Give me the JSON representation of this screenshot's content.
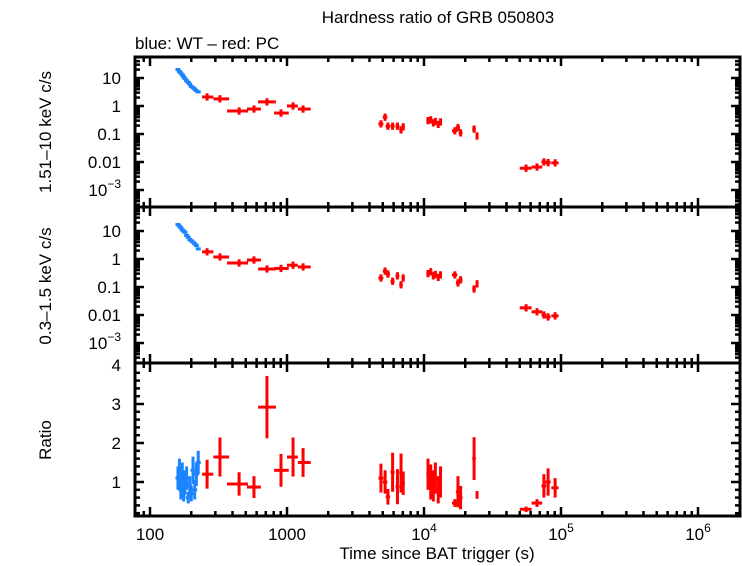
{
  "chart_data": {
    "type": "scatter",
    "title": "Hardness ratio of GRB 050803",
    "subtitle": "blue: WT – red: PC",
    "xlabel": "Time since BAT trigger (s)",
    "x_scale": "log",
    "xlim": [
      78,
      1900000
    ],
    "xtick_labels": [
      {
        "value": 100,
        "label": "100"
      },
      {
        "value": 1000,
        "label": "1000"
      },
      {
        "value": 10000,
        "label": "10",
        "sup": "4"
      },
      {
        "value": 100000,
        "label": "10",
        "sup": "5"
      },
      {
        "value": 1000000,
        "label": "10",
        "sup": "6"
      }
    ],
    "colors": {
      "WT": "#1a85ff",
      "PC": "#ff0000"
    },
    "panels": [
      {
        "key": "hard",
        "ylabel": "1.51–10 keV c/s",
        "y_scale": "log",
        "ylim": [
          0.00025,
          52
        ],
        "ytick_labels": [
          {
            "value": 10,
            "label": "10"
          },
          {
            "value": 1,
            "label": "1"
          },
          {
            "value": 0.1,
            "label": "0.1"
          },
          {
            "value": 0.01,
            "label": "0.01"
          },
          {
            "value": 0.001,
            "label": "10",
            "sup": "−3"
          }
        ]
      },
      {
        "key": "soft",
        "ylabel": "0.3–1.5 keV c/s",
        "y_scale": "log",
        "ylim": [
          0.00021,
          72
        ],
        "ytick_labels": [
          {
            "value": 10,
            "label": "10"
          },
          {
            "value": 1,
            "label": "1"
          },
          {
            "value": 0.1,
            "label": "0.1"
          },
          {
            "value": 0.01,
            "label": "0.01"
          },
          {
            "value": 0.001,
            "label": "10",
            "sup": "−3"
          }
        ]
      },
      {
        "key": "ratio",
        "ylabel": "Ratio",
        "y_scale": "linear",
        "ylim": [
          0.13,
          4.05
        ],
        "ytick_labels": [
          {
            "value": 1,
            "label": "1"
          },
          {
            "value": 2,
            "label": "2"
          },
          {
            "value": 3,
            "label": "3"
          },
          {
            "value": 4,
            "label": "4"
          }
        ]
      }
    ],
    "series": [
      {
        "name": "WT",
        "t": [
          160,
          164,
          168,
          172,
          176,
          180,
          185,
          190,
          195,
          200,
          206,
          212,
          218,
          225
        ],
        "hard": [
          20,
          17,
          15,
          13,
          11,
          9.5,
          8,
          7,
          6,
          5,
          4.5,
          4,
          3.5,
          3.2
        ],
        "soft": [
          17,
          15,
          13,
          11,
          10,
          9,
          7,
          6,
          5,
          4.5,
          4,
          3.5,
          3,
          2.3
        ],
        "ratio": [
          1.1,
          1.3,
          0.8,
          1.2,
          0.7,
          1.0,
          1.1,
          0.6,
          0.9,
          0.7,
          1.3,
          0.8,
          1.2,
          1.5
        ],
        "ratio_err": [
          0.3,
          0.3,
          0.25,
          0.3,
          0.2,
          0.3,
          0.3,
          0.15,
          0.25,
          0.2,
          0.35,
          0.25,
          0.3,
          0.3
        ]
      },
      {
        "name": "PC",
        "t": [
          261,
          324,
          447,
          574,
          714,
          904,
          1107,
          1310,
          4850,
          5200,
          5450,
          5900,
          6400,
          6800,
          7050,
          10700,
          11200,
          11700,
          12100,
          12700,
          13200,
          16800,
          17700,
          18500,
          23200,
          24400,
          55600,
          66800,
          75000,
          80500,
          90600
        ],
        "t_lo": [
          240,
          290,
          365,
          510,
          615,
          805,
          1000,
          1200,
          4650,
          5000,
          5250,
          5700,
          6200,
          6600,
          6850,
          10400,
          10900,
          11400,
          11800,
          12400,
          12900,
          16000,
          17100,
          17900,
          22500,
          23800,
          50000,
          61000,
          72000,
          77000,
          85000
        ],
        "t_hi": [
          290,
          378,
          520,
          645,
          830,
          1030,
          1200,
          1490,
          5050,
          5400,
          5650,
          6100,
          6600,
          7000,
          7250,
          11000,
          11500,
          12000,
          12400,
          13000,
          13500,
          17500,
          18300,
          19100,
          23900,
          25000,
          61000,
          73000,
          78000,
          84000,
          96000
        ],
        "hard": [
          2.1,
          1.8,
          0.66,
          0.78,
          1.4,
          0.56,
          1.0,
          0.78,
          0.23,
          0.4,
          0.19,
          0.19,
          0.19,
          0.14,
          0.18,
          0.3,
          0.32,
          0.25,
          0.28,
          0.22,
          0.27,
          0.13,
          0.17,
          0.11,
          0.15,
          0.085,
          0.006,
          0.0066,
          0.01,
          0.0095,
          0.0093
        ],
        "soft": [
          1.8,
          1.18,
          0.72,
          0.92,
          0.44,
          0.46,
          0.6,
          0.52,
          0.21,
          0.37,
          0.29,
          0.16,
          0.25,
          0.12,
          0.21,
          0.3,
          0.35,
          0.25,
          0.28,
          0.22,
          0.27,
          0.27,
          0.14,
          0.18,
          0.085,
          0.13,
          0.018,
          0.013,
          0.01,
          0.0085,
          0.0093
        ],
        "ratio": [
          1.2,
          1.64,
          0.95,
          0.87,
          2.92,
          1.3,
          1.64,
          1.5,
          1.1,
          1.0,
          0.62,
          1.25,
          0.88,
          1.23,
          0.97,
          1.2,
          1.0,
          0.9,
          1.1,
          0.8,
          1.0,
          0.46,
          0.75,
          0.6,
          1.6,
          0.67,
          0.3,
          0.46,
          0.9,
          1.0,
          0.85
        ],
        "ratio_err": [
          0.37,
          0.5,
          0.3,
          0.28,
          0.8,
          0.42,
          0.5,
          0.37,
          0.37,
          0.3,
          0.2,
          0.5,
          0.45,
          0.5,
          0.3,
          0.4,
          0.45,
          0.4,
          0.4,
          0.35,
          0.4,
          0.1,
          0.4,
          0.3,
          0.55,
          0.1,
          0.07,
          0.1,
          0.3,
          0.35,
          0.25
        ]
      }
    ]
  }
}
